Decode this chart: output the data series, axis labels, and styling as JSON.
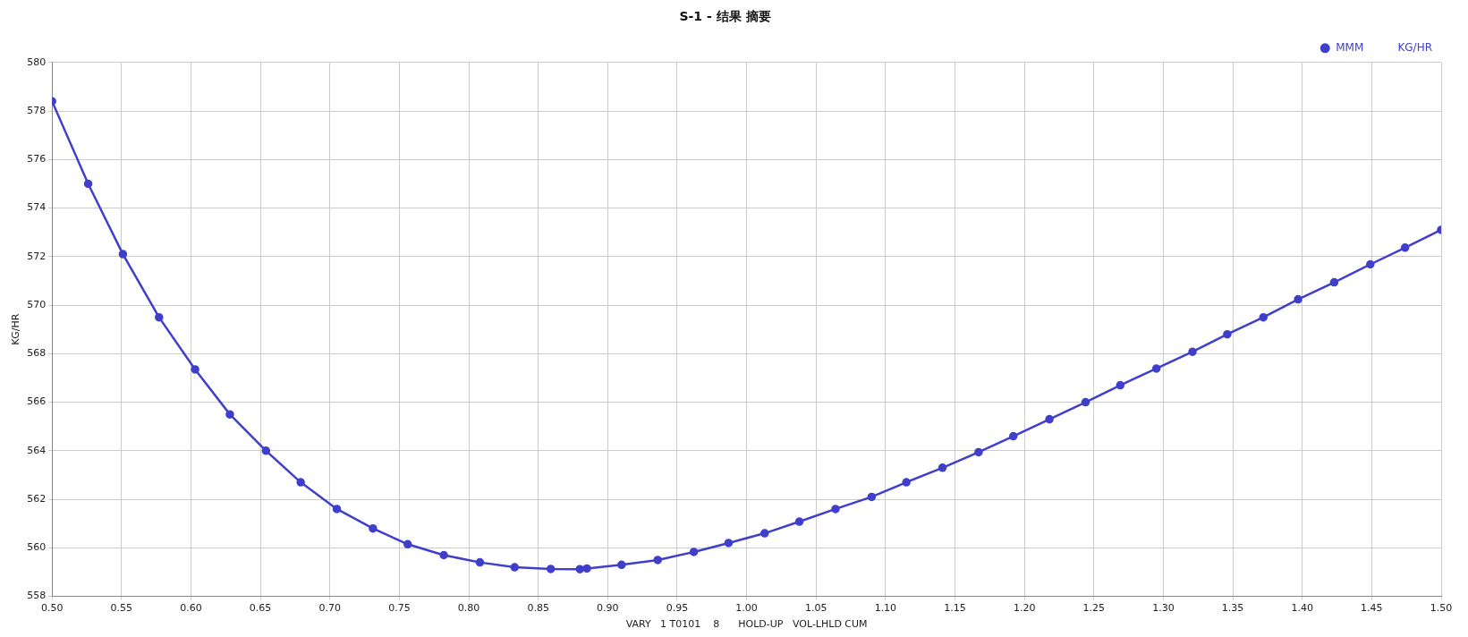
{
  "chart_data": {
    "type": "line",
    "title": "S-1 - 结果 摘要",
    "xlabel": "VARY   1 T0101    8      HOLD-UP   VOL-LHLD CUM",
    "ylabel": "KG/HR",
    "x": [
      0.5,
      0.526,
      0.551,
      0.577,
      0.603,
      0.628,
      0.654,
      0.679,
      0.705,
      0.731,
      0.756,
      0.782,
      0.808,
      0.833,
      0.859,
      0.88,
      0.885,
      0.91,
      0.936,
      0.962,
      0.987,
      1.013,
      1.038,
      1.064,
      1.09,
      1.115,
      1.141,
      1.167,
      1.192,
      1.218,
      1.244,
      1.269,
      1.295,
      1.321,
      1.346,
      1.372,
      1.397,
      1.423,
      1.449,
      1.474,
      1.5
    ],
    "series": [
      {
        "name": "MMM          KG/HR",
        "color": "#3f3fcc",
        "values": [
          578.4,
          575.0,
          572.1,
          569.5,
          567.35,
          565.5,
          564.0,
          562.7,
          561.6,
          560.8,
          560.15,
          559.7,
          559.4,
          559.2,
          559.13,
          559.12,
          559.15,
          559.3,
          559.5,
          559.83,
          560.2,
          560.6,
          561.08,
          561.6,
          562.1,
          562.7,
          563.3,
          563.94,
          564.6,
          565.3,
          566.0,
          566.7,
          567.39,
          568.08,
          568.8,
          569.5,
          570.24,
          570.94,
          571.68,
          572.37,
          573.1
        ]
      }
    ],
    "xlim": [
      0.5,
      1.5
    ],
    "xticks": [
      {
        "value": 0.5,
        "label": "0.50"
      },
      {
        "value": 0.55,
        "label": "0.55"
      },
      {
        "value": 0.6,
        "label": "0.60"
      },
      {
        "value": 0.65,
        "label": "0.65"
      },
      {
        "value": 0.7,
        "label": "0.70"
      },
      {
        "value": 0.75,
        "label": "0.75"
      },
      {
        "value": 0.8,
        "label": "0.80"
      },
      {
        "value": 0.85,
        "label": "0.85"
      },
      {
        "value": 0.9,
        "label": "0.90"
      },
      {
        "value": 0.95,
        "label": "0.95"
      },
      {
        "value": 1.0,
        "label": "1.00"
      },
      {
        "value": 1.05,
        "label": "1.05"
      },
      {
        "value": 1.1,
        "label": "1.10"
      },
      {
        "value": 1.15,
        "label": "1.15"
      },
      {
        "value": 1.2,
        "label": "1.20"
      },
      {
        "value": 1.25,
        "label": "1.25"
      },
      {
        "value": 1.3,
        "label": "1.30"
      },
      {
        "value": 1.35,
        "label": "1.35"
      },
      {
        "value": 1.4,
        "label": "1.40"
      },
      {
        "value": 1.45,
        "label": "1.45"
      },
      {
        "value": 1.5,
        "label": "1.50"
      }
    ],
    "ylim": [
      558,
      580
    ],
    "yticks": [
      558,
      560,
      562,
      564,
      566,
      568,
      570,
      572,
      574,
      576,
      578,
      580
    ],
    "grid": true,
    "legend": "top right",
    "marker": "circle",
    "line_style": "solid"
  }
}
